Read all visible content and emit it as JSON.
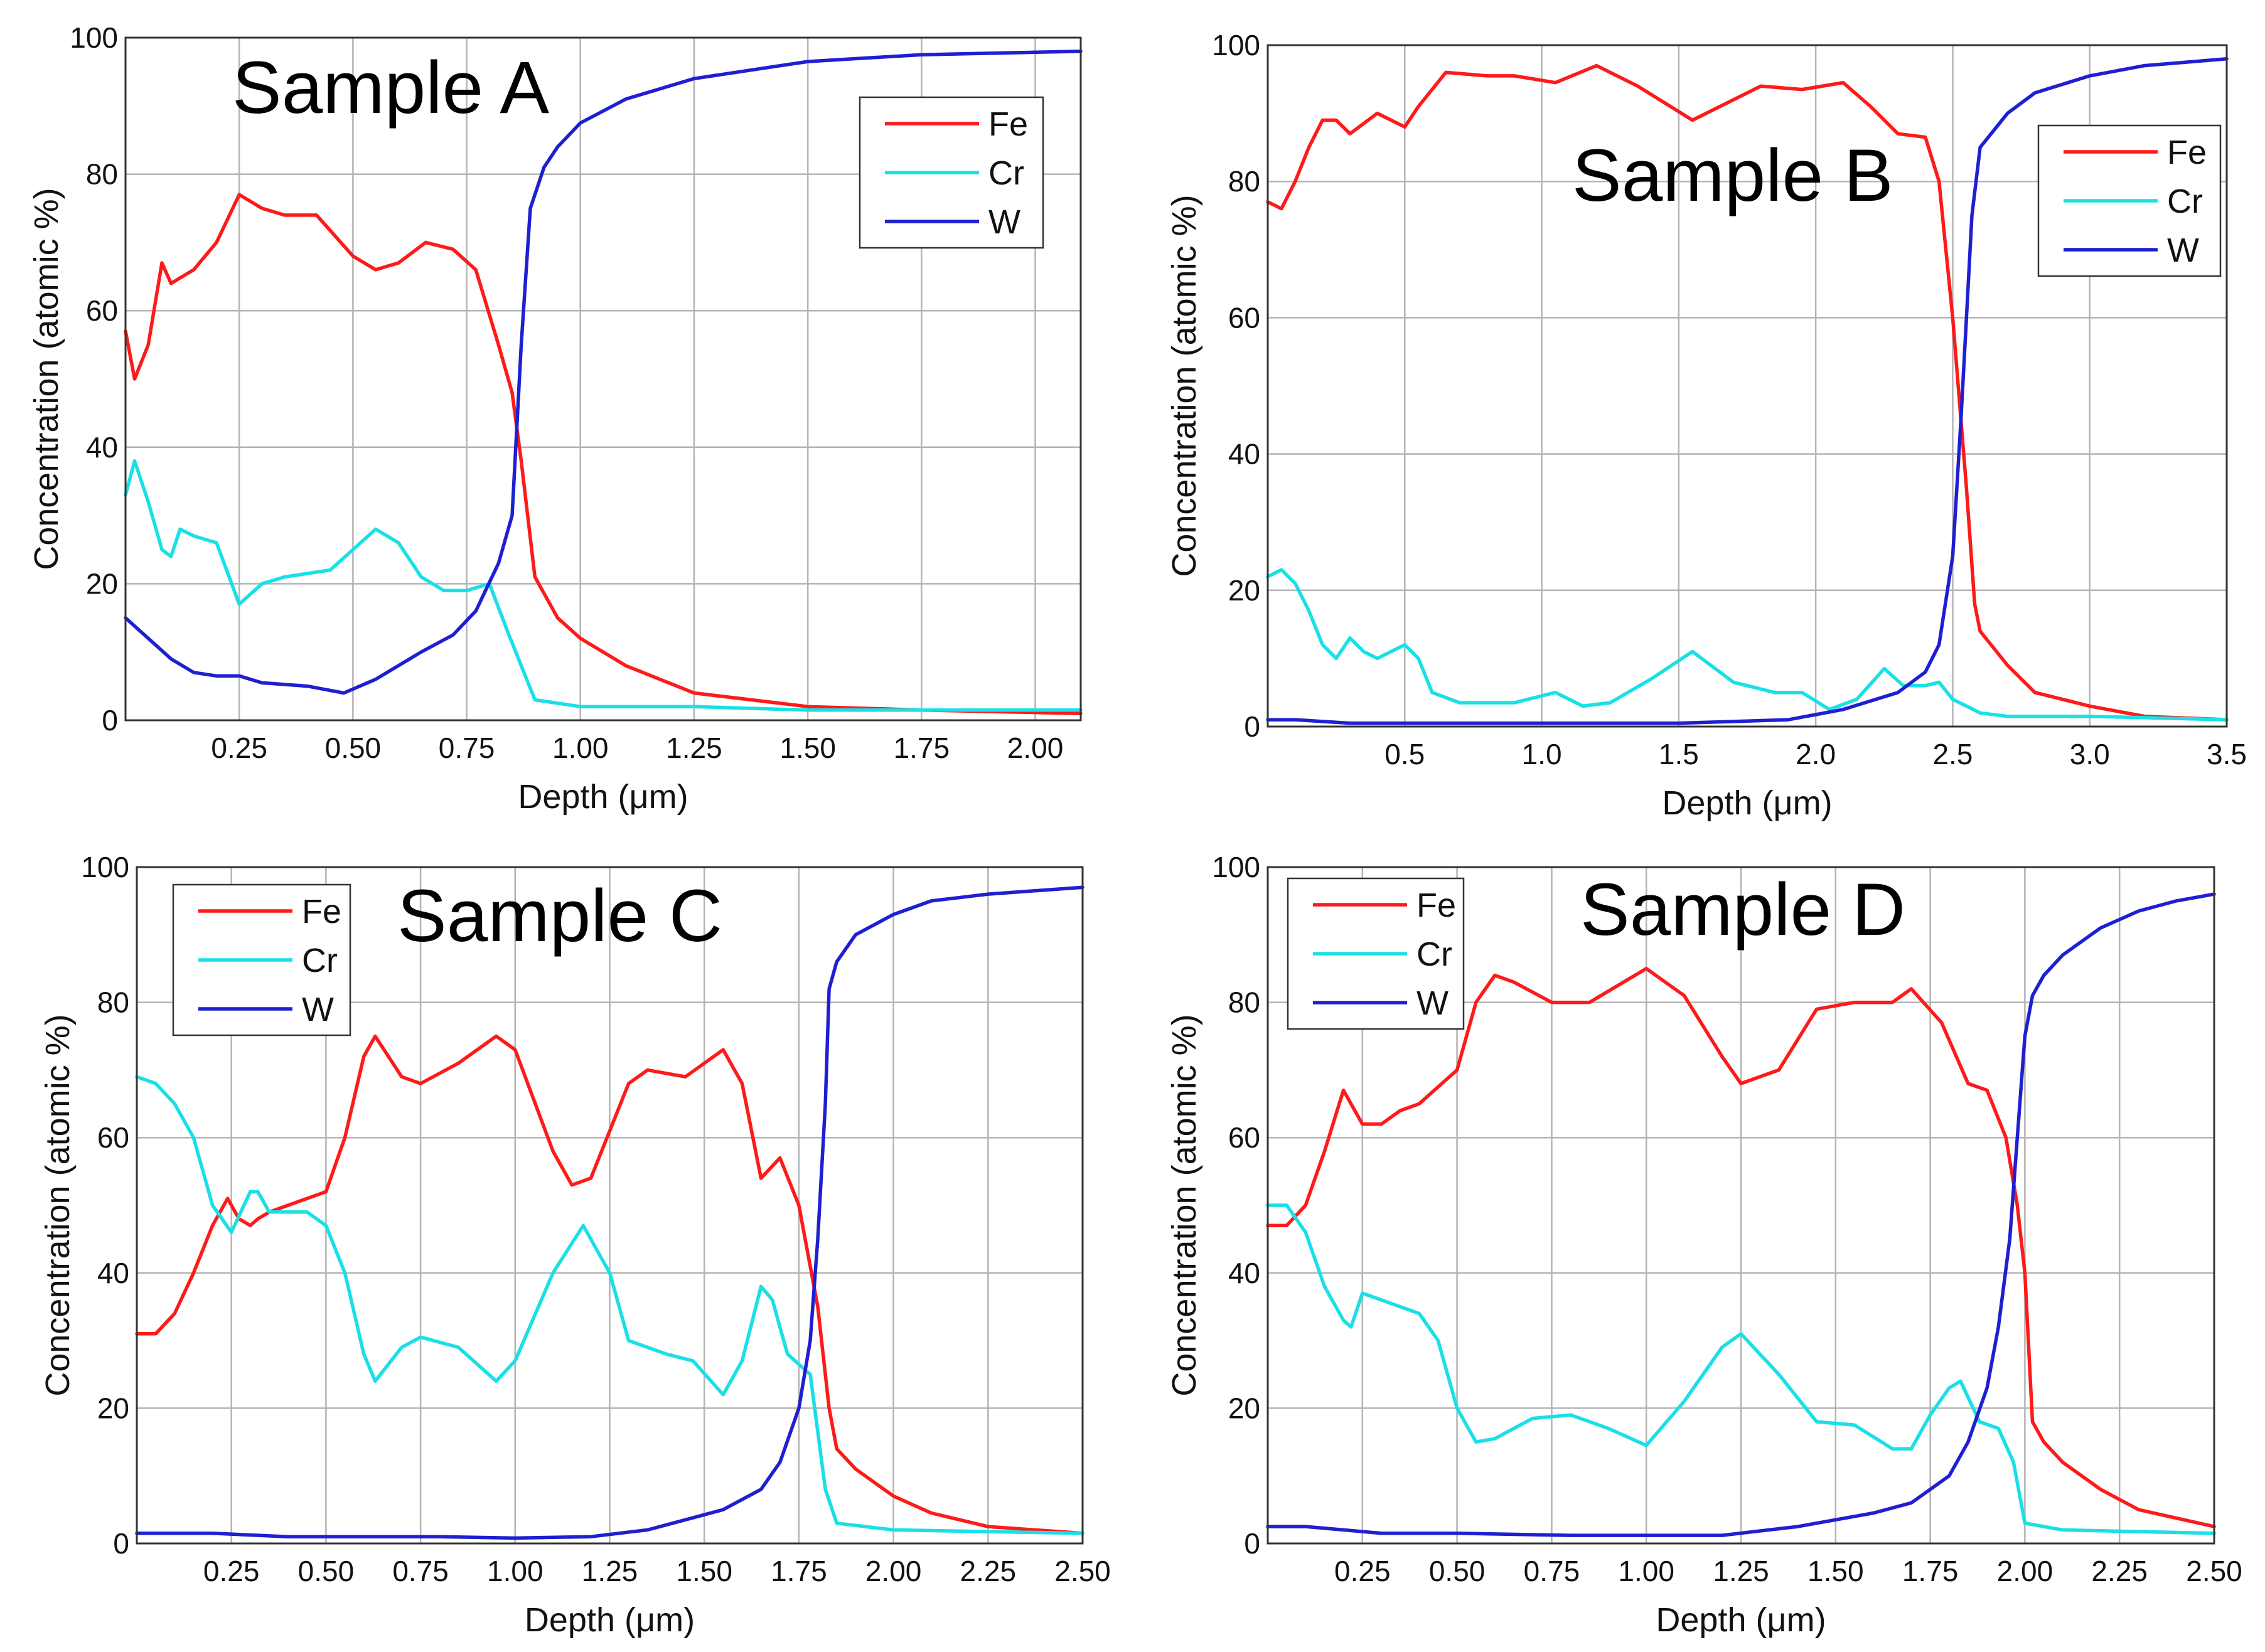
{
  "figure": {
    "colors": {
      "Fe": "#ff1a1a",
      "Cr": "#19e0e6",
      "W": "#1f1fd2",
      "grid": "#b4b4b4",
      "frame": "#333333"
    }
  },
  "chart_data": [
    {
      "type": "line",
      "title": "Sample A",
      "xlabel": "Depth (μm)",
      "ylabel": "Concentration (atomic %)",
      "xlim": [
        0,
        2.1
      ],
      "ylim": [
        0,
        100
      ],
      "xticks": [
        0.25,
        0.5,
        0.75,
        1.0,
        1.25,
        1.5,
        1.75,
        2.0
      ],
      "xtick_labels": [
        "0.25",
        "0.50",
        "0.75",
        "1.00",
        "1.25",
        "1.50",
        "1.75",
        "2.00"
      ],
      "yticks": [
        0,
        20,
        40,
        60,
        80,
        100
      ],
      "ytick_labels": [
        "0",
        "20",
        "40",
        "60",
        "80",
        "100"
      ],
      "grid": true,
      "legend": {
        "position": "top-right",
        "entries": [
          "Fe",
          "Cr",
          "W"
        ]
      },
      "series": [
        {
          "name": "Fe",
          "x": [
            0,
            0.02,
            0.05,
            0.08,
            0.1,
            0.15,
            0.2,
            0.25,
            0.3,
            0.35,
            0.42,
            0.5,
            0.55,
            0.6,
            0.66,
            0.72,
            0.77,
            0.82,
            0.85,
            0.87,
            0.9,
            0.95,
            1.0,
            1.1,
            1.25,
            1.5,
            1.75,
            2.1
          ],
          "y": [
            57,
            50,
            55,
            67,
            64,
            66,
            70,
            77,
            75,
            74,
            74,
            68,
            66,
            67,
            70,
            69,
            66,
            55,
            48,
            38,
            21,
            15,
            12,
            8,
            4,
            2,
            1.5,
            1
          ]
        },
        {
          "name": "Cr",
          "x": [
            0,
            0.02,
            0.05,
            0.08,
            0.1,
            0.12,
            0.15,
            0.2,
            0.25,
            0.3,
            0.35,
            0.45,
            0.5,
            0.55,
            0.6,
            0.65,
            0.7,
            0.75,
            0.8,
            0.84,
            0.87,
            0.9,
            1.0,
            1.25,
            1.5,
            1.75,
            2.1
          ],
          "y": [
            33,
            38,
            32,
            25,
            24,
            28,
            27,
            26,
            17,
            20,
            21,
            22,
            25,
            28,
            26,
            21,
            19,
            19,
            20,
            13,
            8,
            3,
            2,
            2,
            1.5,
            1.5,
            1.5
          ]
        },
        {
          "name": "W",
          "x": [
            0,
            0.05,
            0.1,
            0.15,
            0.2,
            0.25,
            0.3,
            0.4,
            0.48,
            0.55,
            0.65,
            0.72,
            0.77,
            0.82,
            0.85,
            0.87,
            0.89,
            0.92,
            0.95,
            1.0,
            1.1,
            1.25,
            1.5,
            1.75,
            2.1
          ],
          "y": [
            15,
            12,
            9,
            7,
            6.5,
            6.5,
            5.5,
            5,
            4,
            6,
            10,
            12.5,
            16,
            23,
            30,
            55,
            75,
            81,
            84,
            87.5,
            91,
            94,
            96.5,
            97.5,
            98
          ]
        }
      ]
    },
    {
      "type": "line",
      "title": "Sample B",
      "xlabel": "Depth (μm)",
      "ylabel": "Concentration (atomic %)",
      "xlim": [
        0,
        3.5
      ],
      "ylim": [
        0,
        100
      ],
      "xticks": [
        0.5,
        1.0,
        1.5,
        2.0,
        2.5,
        3.0,
        3.5
      ],
      "xtick_labels": [
        "0.5",
        "1.0",
        "1.5",
        "2.0",
        "2.5",
        "3.0",
        "3.5"
      ],
      "yticks": [
        0,
        20,
        40,
        60,
        80,
        100
      ],
      "ytick_labels": [
        "0",
        "20",
        "40",
        "60",
        "80",
        "100"
      ],
      "grid": true,
      "legend": {
        "position": "top-right",
        "entries": [
          "Fe",
          "Cr",
          "W"
        ]
      },
      "series": [
        {
          "name": "Fe",
          "x": [
            0,
            0.05,
            0.1,
            0.15,
            0.2,
            0.25,
            0.3,
            0.4,
            0.5,
            0.55,
            0.65,
            0.8,
            0.9,
            1.05,
            1.2,
            1.35,
            1.55,
            1.7,
            1.8,
            1.95,
            2.1,
            2.2,
            2.3,
            2.4,
            2.45,
            2.5,
            2.55,
            2.58,
            2.6,
            2.7,
            2.8,
            3.0,
            3.2,
            3.5
          ],
          "y": [
            77,
            76,
            80,
            85,
            89,
            89,
            87,
            90,
            88,
            91,
            96,
            95.5,
            95.5,
            94.5,
            97,
            94,
            89,
            92,
            94,
            93.5,
            94.5,
            91,
            87,
            86.5,
            80,
            60,
            35,
            18,
            14,
            9,
            5,
            3,
            1.5,
            1
          ]
        },
        {
          "name": "Cr",
          "x": [
            0,
            0.05,
            0.1,
            0.15,
            0.2,
            0.25,
            0.3,
            0.35,
            0.4,
            0.45,
            0.5,
            0.55,
            0.6,
            0.7,
            0.9,
            1.05,
            1.15,
            1.25,
            1.4,
            1.55,
            1.7,
            1.85,
            1.95,
            2.05,
            2.15,
            2.25,
            2.32,
            2.4,
            2.45,
            2.5,
            2.55,
            2.6,
            2.7,
            3.0,
            3.5
          ],
          "y": [
            22,
            23,
            21,
            17,
            12,
            10,
            13,
            11,
            10,
            11,
            12,
            10,
            5,
            3.5,
            3.5,
            5,
            3,
            3.5,
            7,
            11,
            6.5,
            5,
            5,
            2.5,
            4,
            8.5,
            6,
            6,
            6.5,
            4,
            3,
            2,
            1.5,
            1.5,
            1
          ]
        },
        {
          "name": "W",
          "x": [
            0,
            0.1,
            0.3,
            0.6,
            1.0,
            1.5,
            1.9,
            2.1,
            2.3,
            2.4,
            2.45,
            2.5,
            2.53,
            2.55,
            2.57,
            2.6,
            2.7,
            2.8,
            3.0,
            3.2,
            3.5
          ],
          "y": [
            1,
            1,
            0.5,
            0.5,
            0.5,
            0.5,
            1,
            2.5,
            5,
            8,
            12,
            25,
            45,
            60,
            75,
            85,
            90,
            93,
            95.5,
            97,
            98
          ]
        }
      ]
    },
    {
      "type": "line",
      "title": "Sample C",
      "xlabel": "Depth (μm)",
      "ylabel": "Concentration (atomic %)",
      "xlim": [
        0,
        2.5
      ],
      "ylim": [
        0,
        100
      ],
      "xticks": [
        0.25,
        0.5,
        0.75,
        1.0,
        1.25,
        1.5,
        1.75,
        2.0,
        2.25,
        2.5
      ],
      "xtick_labels": [
        "0.25",
        "0.50",
        "0.75",
        "1.00",
        "1.25",
        "1.50",
        "1.75",
        "2.00",
        "2.25",
        "2.50"
      ],
      "yticks": [
        0,
        20,
        40,
        60,
        80,
        100
      ],
      "ytick_labels": [
        "0",
        "20",
        "40",
        "60",
        "80",
        "100"
      ],
      "grid": true,
      "legend": {
        "position": "top-left",
        "entries": [
          "Fe",
          "Cr",
          "W"
        ]
      },
      "series": [
        {
          "name": "Fe",
          "x": [
            0,
            0.05,
            0.1,
            0.15,
            0.2,
            0.24,
            0.27,
            0.3,
            0.32,
            0.35,
            0.4,
            0.5,
            0.55,
            0.6,
            0.63,
            0.7,
            0.75,
            0.85,
            0.95,
            1.0,
            1.1,
            1.15,
            1.2,
            1.3,
            1.35,
            1.45,
            1.55,
            1.6,
            1.65,
            1.7,
            1.75,
            1.8,
            1.83,
            1.85,
            1.9,
            2.0,
            2.1,
            2.25,
            2.5
          ],
          "y": [
            31,
            31,
            34,
            40,
            47,
            51,
            48,
            47,
            48,
            49,
            50,
            52,
            60,
            72,
            75,
            69,
            68,
            71,
            75,
            73,
            58,
            53,
            54,
            68,
            70,
            69,
            73,
            68,
            54,
            57,
            50,
            35,
            20,
            14,
            11,
            7,
            4.5,
            2.5,
            1.5
          ]
        },
        {
          "name": "Cr",
          "x": [
            0,
            0.05,
            0.1,
            0.15,
            0.2,
            0.25,
            0.3,
            0.32,
            0.35,
            0.45,
            0.5,
            0.55,
            0.6,
            0.63,
            0.7,
            0.75,
            0.85,
            0.95,
            1.0,
            1.1,
            1.18,
            1.25,
            1.3,
            1.4,
            1.47,
            1.55,
            1.6,
            1.65,
            1.68,
            1.72,
            1.78,
            1.82,
            1.85,
            2.0,
            2.5
          ],
          "y": [
            69,
            68,
            65,
            60,
            50,
            46,
            52,
            52,
            49,
            49,
            47,
            40,
            28,
            24,
            29,
            30.5,
            29,
            24,
            27,
            40,
            47,
            40,
            30,
            28,
            27,
            22,
            27,
            38,
            36,
            28,
            25,
            8,
            3,
            2,
            1.5
          ]
        },
        {
          "name": "W",
          "x": [
            0,
            0.1,
            0.2,
            0.4,
            0.6,
            0.8,
            1.0,
            1.2,
            1.35,
            1.45,
            1.55,
            1.65,
            1.7,
            1.75,
            1.78,
            1.8,
            1.82,
            1.83,
            1.85,
            1.9,
            2.0,
            2.1,
            2.25,
            2.5
          ],
          "y": [
            1.5,
            1.5,
            1.5,
            1,
            1,
            1,
            0.8,
            1,
            2,
            3.5,
            5,
            8,
            12,
            20,
            30,
            45,
            65,
            82,
            86,
            90,
            93,
            95,
            96,
            97
          ]
        }
      ]
    },
    {
      "type": "line",
      "title": "Sample D",
      "xlabel": "Depth (μm)",
      "ylabel": "Concentration (atomic %)",
      "xlim": [
        0,
        2.5
      ],
      "ylim": [
        0,
        100
      ],
      "xticks": [
        0.25,
        0.5,
        0.75,
        1.0,
        1.25,
        1.5,
        1.75,
        2.0,
        2.25,
        2.5
      ],
      "xtick_labels": [
        "0.25",
        "0.50",
        "0.75",
        "1.00",
        "1.25",
        "1.50",
        "1.75",
        "2.00",
        "2.25",
        "2.50"
      ],
      "yticks": [
        0,
        20,
        40,
        60,
        80,
        100
      ],
      "ytick_labels": [
        "0",
        "20",
        "40",
        "60",
        "80",
        "100"
      ],
      "grid": true,
      "legend": {
        "position": "top-left",
        "entries": [
          "Fe",
          "Cr",
          "W"
        ]
      },
      "series": [
        {
          "name": "Fe",
          "x": [
            0,
            0.05,
            0.1,
            0.15,
            0.2,
            0.25,
            0.3,
            0.35,
            0.4,
            0.5,
            0.55,
            0.6,
            0.65,
            0.75,
            0.85,
            1.0,
            1.1,
            1.2,
            1.25,
            1.35,
            1.45,
            1.55,
            1.65,
            1.7,
            1.78,
            1.85,
            1.9,
            1.95,
            1.98,
            2.0,
            2.02,
            2.05,
            2.1,
            2.2,
            2.3,
            2.5
          ],
          "y": [
            47,
            47,
            50,
            58,
            67,
            62,
            62,
            64,
            65,
            70,
            80,
            84,
            83,
            80,
            80,
            85,
            81,
            72,
            68,
            70,
            79,
            80,
            80,
            82,
            77,
            68,
            67,
            60,
            50,
            40,
            18,
            15,
            12,
            8,
            5,
            2.5
          ]
        },
        {
          "name": "Cr",
          "x": [
            0,
            0.05,
            0.1,
            0.15,
            0.2,
            0.22,
            0.25,
            0.3,
            0.35,
            0.4,
            0.45,
            0.5,
            0.55,
            0.6,
            0.7,
            0.8,
            0.9,
            1.0,
            1.1,
            1.2,
            1.25,
            1.35,
            1.45,
            1.55,
            1.65,
            1.7,
            1.75,
            1.8,
            1.83,
            1.88,
            1.93,
            1.97,
            2.0,
            2.1,
            2.5
          ],
          "y": [
            50,
            50,
            46,
            38,
            33,
            32,
            37,
            36,
            35,
            34,
            30,
            20,
            15,
            15.5,
            18.5,
            19,
            17,
            14.5,
            21,
            29,
            31,
            25,
            18,
            17.5,
            14,
            14,
            19,
            23,
            24,
            18,
            17,
            12,
            3,
            2,
            1.5
          ]
        },
        {
          "name": "W",
          "x": [
            0,
            0.1,
            0.2,
            0.3,
            0.5,
            0.8,
            1.0,
            1.2,
            1.4,
            1.6,
            1.7,
            1.8,
            1.85,
            1.9,
            1.93,
            1.96,
            1.98,
            2.0,
            2.02,
            2.05,
            2.1,
            2.2,
            2.3,
            2.4,
            2.5
          ],
          "y": [
            2.5,
            2.5,
            2,
            1.5,
            1.5,
            1.2,
            1.2,
            1.2,
            2.5,
            4.5,
            6,
            10,
            15,
            23,
            32,
            45,
            60,
            75,
            81,
            84,
            87,
            91,
            93.5,
            95,
            96
          ]
        }
      ]
    }
  ]
}
